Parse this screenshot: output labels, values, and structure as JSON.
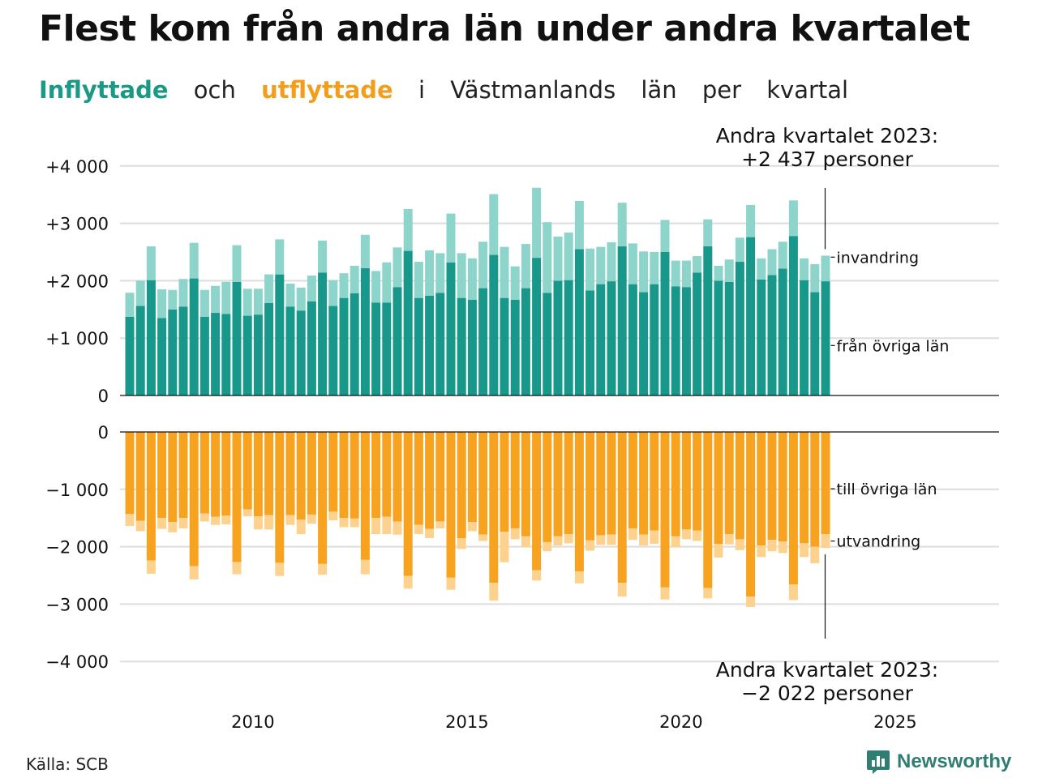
{
  "title": "Flest kom från andra län under andra kvartalet",
  "subtitle": {
    "in_word": "Inflyttade",
    "and_word": "och",
    "out_word": "utflyttade",
    "in_word2": "i",
    "region": "Västmanlands",
    "lan": "län",
    "per": "per",
    "kvartal": "kvartal"
  },
  "source": "Källa: SCB",
  "logo": {
    "text": "Newsworthy",
    "icon": "newsworthy-logo-icon"
  },
  "colors": {
    "in_dark": "#17988a",
    "in_light": "#8dd4cb",
    "out_dark": "#f7a31f",
    "out_light": "#fdd28f",
    "grid": "#dddddd"
  },
  "chart_data": {
    "type": "bar",
    "stacked": true,
    "quarters_start": "2007 Q1",
    "quarters_end": "2023 Q2",
    "x_ticks": [
      "2010",
      "2015",
      "2020",
      "2025"
    ],
    "top": {
      "y_ticks": [
        "0",
        "+1 000",
        "+2 000",
        "+3 000",
        "+4 000"
      ],
      "ylim": [
        0,
        4000
      ],
      "series": [
        {
          "name": "från övriga län",
          "values": [
            1370,
            1560,
            2010,
            1350,
            1500,
            1550,
            2040,
            1370,
            1440,
            1420,
            1980,
            1390,
            1410,
            1610,
            2110,
            1550,
            1480,
            1640,
            2140,
            1560,
            1700,
            1780,
            2220,
            1620,
            1620,
            1890,
            2520,
            1700,
            1740,
            1790,
            2320,
            1700,
            1670,
            1870,
            2450,
            1700,
            1670,
            1870,
            2400,
            1790,
            2000,
            2010,
            2550,
            1830,
            1940,
            1990,
            2600,
            1940,
            1800,
            1940,
            2500,
            1900,
            1890,
            2140,
            2600,
            2000,
            1980,
            2330,
            2760,
            2020,
            2100,
            2210,
            2780,
            2010,
            1800,
            1990
          ]
        },
        {
          "name": "invandring",
          "values": [
            420,
            440,
            590,
            500,
            340,
            480,
            620,
            470,
            470,
            560,
            640,
            470,
            450,
            500,
            610,
            400,
            400,
            450,
            560,
            450,
            430,
            480,
            580,
            550,
            700,
            690,
            730,
            630,
            790,
            690,
            850,
            780,
            720,
            810,
            1060,
            890,
            580,
            770,
            1220,
            1230,
            770,
            830,
            840,
            730,
            650,
            680,
            760,
            710,
            710,
            560,
            560,
            450,
            460,
            290,
            470,
            260,
            390,
            420,
            560,
            370,
            450,
            470,
            620,
            380,
            490,
            447
          ]
        }
      ],
      "annotation": {
        "line1": "Andra kvartalet 2023:",
        "line2": "+2 437 personer"
      }
    },
    "bottom": {
      "y_ticks": [
        "0",
        "−1 000",
        "−2 000",
        "−3 000",
        "−4 000"
      ],
      "ylim": [
        -4000,
        0
      ],
      "series": [
        {
          "name": "till övriga län",
          "values": [
            -1430,
            -1550,
            -2240,
            -1500,
            -1570,
            -1500,
            -2340,
            -1420,
            -1480,
            -1460,
            -2270,
            -1350,
            -1470,
            -1450,
            -2280,
            -1450,
            -1530,
            -1440,
            -2300,
            -1390,
            -1500,
            -1510,
            -2230,
            -1500,
            -1480,
            -1560,
            -2510,
            -1620,
            -1690,
            -1560,
            -2540,
            -1850,
            -1570,
            -1790,
            -2630,
            -1740,
            -1680,
            -1820,
            -2410,
            -1920,
            -1820,
            -1780,
            -2430,
            -1890,
            -1800,
            -1790,
            -2630,
            -1680,
            -1790,
            -1720,
            -2710,
            -1820,
            -1700,
            -1720,
            -2720,
            -1950,
            -1780,
            -1870,
            -2870,
            -1980,
            -1880,
            -1910,
            -2660,
            -1940,
            -2000,
            -1780
          ]
        },
        {
          "name": "utvandring",
          "values": [
            -210,
            -180,
            -230,
            -190,
            -180,
            -180,
            -230,
            -140,
            -140,
            -150,
            -210,
            -120,
            -230,
            -250,
            -230,
            -170,
            -250,
            -160,
            -190,
            -150,
            -160,
            -150,
            -250,
            -280,
            -300,
            -230,
            -220,
            -160,
            -160,
            -120,
            -210,
            -190,
            -160,
            -110,
            -310,
            -530,
            -190,
            -190,
            -180,
            -160,
            -160,
            -160,
            -210,
            -180,
            -170,
            -180,
            -240,
            -200,
            -190,
            -230,
            -210,
            -190,
            -170,
            -180,
            -180,
            -240,
            -180,
            -190,
            -180,
            -200,
            -200,
            -200,
            -270,
            -240,
            -290,
            -242
          ]
        }
      ],
      "annotation": {
        "line1": "Andra kvartalet 2023:",
        "line2": "−2 022 personer"
      }
    }
  }
}
